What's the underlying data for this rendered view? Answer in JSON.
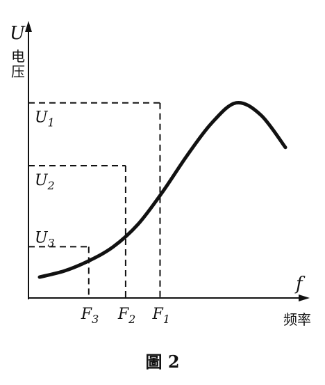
{
  "chart_data": {
    "type": "line",
    "caption": "圖 2",
    "y_axis": {
      "symbol": "U",
      "label": "电压"
    },
    "x_axis": {
      "symbol": "f",
      "label": "频率"
    },
    "curve": {
      "x": [
        0.0,
        1.0,
        2.0,
        3.0,
        4.0,
        5.0,
        6.0,
        7.0,
        8.0,
        9.0,
        10.0
      ],
      "y": [
        0.14,
        0.17,
        0.22,
        0.29,
        0.4,
        0.56,
        0.74,
        0.9,
        1.0,
        0.94,
        0.78
      ]
    },
    "markers": [
      {
        "freq_label": "F3",
        "freq_main": "F",
        "freq_sub": "3",
        "volt_label": "U3",
        "volt_main": "U",
        "volt_sub": "3",
        "x": 2.0,
        "y": 0.29
      },
      {
        "freq_label": "F2",
        "freq_main": "F",
        "freq_sub": "2",
        "volt_label": "U2",
        "volt_main": "U",
        "volt_sub": "2",
        "x": 3.5,
        "y": 0.69
      },
      {
        "freq_label": "F1",
        "freq_main": "F",
        "freq_sub": "1",
        "volt_label": "U1",
        "volt_main": "U",
        "volt_sub": "1",
        "x": 4.9,
        "y": 1.0
      }
    ]
  }
}
